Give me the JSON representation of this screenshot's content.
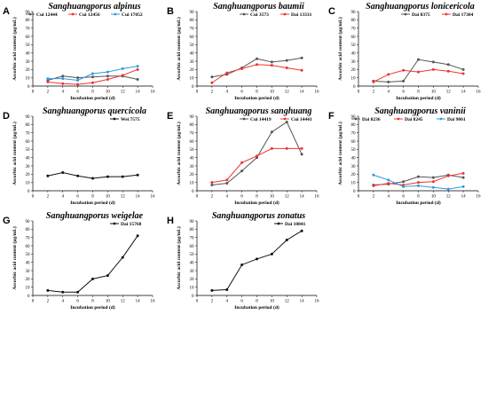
{
  "chart_data": [
    {
      "type": "line",
      "panel_label": "A",
      "title": "Sanghuangporus alpinus",
      "xlabel": "Incubation period (d)",
      "ylabel": "Ascorbic acid content (μg/mL)",
      "xlim": [
        0,
        16
      ],
      "ylim": [
        0,
        90
      ],
      "x_ticks": [
        0,
        2,
        4,
        6,
        8,
        10,
        12,
        14,
        16
      ],
      "y_ticks": [
        0,
        10,
        20,
        30,
        40,
        50,
        60,
        70,
        80,
        90
      ],
      "legend_position": "top",
      "x": [
        2,
        4,
        6,
        8,
        10,
        12,
        14
      ],
      "series": [
        {
          "name": "Cui 12444",
          "color": "#555555",
          "values": [
            7,
            12,
            10,
            11,
            12,
            12,
            8
          ]
        },
        {
          "name": "Cui 12456",
          "color": "#ee3333",
          "values": [
            5,
            3,
            2,
            4,
            8,
            13,
            20
          ]
        },
        {
          "name": "Cui 17052",
          "color": "#3399dd",
          "values": [
            9,
            9,
            7,
            15,
            17,
            21,
            24
          ]
        }
      ]
    },
    {
      "type": "line",
      "panel_label": "B",
      "title": "Sanghuangporus baumii",
      "xlabel": "Incubation period (d)",
      "ylabel": "Ascorbic acid content (μg/mL)",
      "xlim": [
        0,
        16
      ],
      "ylim": [
        0,
        90
      ],
      "x_ticks": [
        0,
        2,
        4,
        6,
        8,
        10,
        12,
        14,
        16
      ],
      "y_ticks": [
        0,
        10,
        20,
        30,
        40,
        50,
        60,
        70,
        80,
        90
      ],
      "legend_position": "top",
      "x": [
        2,
        4,
        6,
        8,
        10,
        12,
        14
      ],
      "series": [
        {
          "name": "Cui 3573",
          "color": "#555555",
          "values": [
            11,
            14,
            22,
            33,
            29,
            31,
            34
          ]
        },
        {
          "name": "Dai 13331",
          "color": "#ee3333",
          "values": [
            4,
            16,
            21,
            26,
            25,
            22,
            19
          ]
        }
      ]
    },
    {
      "type": "line",
      "panel_label": "C",
      "title": "Sanghuangporus lonicericola",
      "xlabel": "Incubation period (d)",
      "ylabel": "Ascorbic acid content (μg/mL)",
      "xlim": [
        0,
        16
      ],
      "ylim": [
        0,
        90
      ],
      "x_ticks": [
        0,
        2,
        4,
        6,
        8,
        10,
        12,
        14,
        16
      ],
      "y_ticks": [
        0,
        10,
        20,
        30,
        40,
        50,
        60,
        70,
        80,
        90
      ],
      "legend_position": "top",
      "x": [
        2,
        4,
        6,
        8,
        10,
        12,
        14
      ],
      "series": [
        {
          "name": "Dai 8375",
          "color": "#555555",
          "values": [
            6,
            5,
            6,
            32,
            29,
            26,
            20
          ]
        },
        {
          "name": "Dai 17304",
          "color": "#ee3333",
          "values": [
            5,
            14,
            19,
            17,
            20,
            18,
            15
          ]
        }
      ]
    },
    {
      "type": "line",
      "panel_label": "D",
      "title": "Sanghuangporus quercicola",
      "xlabel": "Incubation period (d)",
      "ylabel": "Ascorbic acid content (μg/mL)",
      "xlim": [
        0,
        16
      ],
      "ylim": [
        0,
        90
      ],
      "x_ticks": [
        0,
        2,
        4,
        6,
        8,
        10,
        12,
        14,
        16
      ],
      "y_ticks": [
        0,
        10,
        20,
        30,
        40,
        50,
        60,
        70,
        80,
        90
      ],
      "legend_position": "top-right",
      "x": [
        2,
        4,
        6,
        8,
        10,
        12,
        14
      ],
      "series": [
        {
          "name": "Wei 7575",
          "color": "#111111",
          "values": [
            18,
            22,
            18,
            15,
            17,
            17,
            19
          ]
        }
      ]
    },
    {
      "type": "line",
      "panel_label": "E",
      "title": "Sanghuangporus sanghuang",
      "xlabel": "Incubation period (d)",
      "ylabel": "Ascorbic acid content (μg/mL)",
      "xlim": [
        0,
        16
      ],
      "ylim": [
        0,
        90
      ],
      "x_ticks": [
        0,
        2,
        4,
        6,
        8,
        10,
        12,
        14,
        16
      ],
      "y_ticks": [
        0,
        10,
        20,
        30,
        40,
        50,
        60,
        70,
        80,
        90
      ],
      "legend_position": "top",
      "x": [
        2,
        4,
        6,
        8,
        10,
        12,
        14
      ],
      "series": [
        {
          "name": "Cui 14419",
          "color": "#555555",
          "values": [
            7,
            9,
            24,
            40,
            71,
            83,
            44
          ]
        },
        {
          "name": "Cui 14441",
          "color": "#ee3333",
          "values": [
            10,
            13,
            34,
            42,
            51,
            51,
            51
          ]
        }
      ]
    },
    {
      "type": "line",
      "panel_label": "F",
      "title": "Sanghuangporus vaninii",
      "xlabel": "Incubation period (d)",
      "ylabel": "Ascorbic acid content (μg/mL)",
      "xlim": [
        0,
        16
      ],
      "ylim": [
        0,
        90
      ],
      "x_ticks": [
        0,
        2,
        4,
        6,
        8,
        10,
        12,
        14,
        16
      ],
      "y_ticks": [
        0,
        10,
        20,
        30,
        40,
        50,
        60,
        70,
        80,
        90
      ],
      "legend_position": "top",
      "x": [
        2,
        4,
        6,
        8,
        10,
        12,
        14
      ],
      "series": [
        {
          "name": "Dai 8236",
          "color": "#555555",
          "values": [
            7,
            8,
            11,
            17,
            16,
            19,
            16
          ]
        },
        {
          "name": "Dai 8245",
          "color": "#ee3333",
          "values": [
            6,
            9,
            7,
            10,
            11,
            18,
            21
          ]
        },
        {
          "name": "Dai 9061",
          "color": "#3399dd",
          "values": [
            19,
            13,
            5,
            6,
            4,
            2,
            5
          ]
        }
      ]
    },
    {
      "type": "line",
      "panel_label": "G",
      "title": "Sanghuangporus weigelae",
      "xlabel": "Incubation period (d)",
      "ylabel": "Ascorbic acid content (μg/mL)",
      "xlim": [
        0,
        16
      ],
      "ylim": [
        0,
        90
      ],
      "x_ticks": [
        0,
        2,
        4,
        6,
        8,
        10,
        12,
        14,
        16
      ],
      "y_ticks": [
        0,
        10,
        20,
        30,
        40,
        50,
        60,
        70,
        80,
        90
      ],
      "legend_position": "top-right",
      "x": [
        2,
        4,
        6,
        8,
        10,
        12,
        14
      ],
      "series": [
        {
          "name": "Dai 15768",
          "color": "#111111",
          "values": [
            6,
            4,
            4,
            20,
            24,
            46,
            72
          ]
        }
      ]
    },
    {
      "type": "line",
      "panel_label": "H",
      "title": "Sanghuangporus zonatus",
      "xlabel": "Incubation period (d)",
      "ylabel": "Ascorbic acid content (μg/mL)",
      "xlim": [
        0,
        16
      ],
      "ylim": [
        0,
        90
      ],
      "x_ticks": [
        0,
        2,
        4,
        6,
        8,
        10,
        12,
        14,
        16
      ],
      "y_ticks": [
        0,
        10,
        20,
        30,
        40,
        50,
        60,
        70,
        80,
        90
      ],
      "legend_position": "top-right",
      "x": [
        2,
        4,
        6,
        8,
        10,
        12,
        14
      ],
      "series": [
        {
          "name": "Dai 10841",
          "color": "#111111",
          "values": [
            6,
            7,
            37,
            44,
            50,
            67,
            78
          ]
        }
      ]
    }
  ]
}
